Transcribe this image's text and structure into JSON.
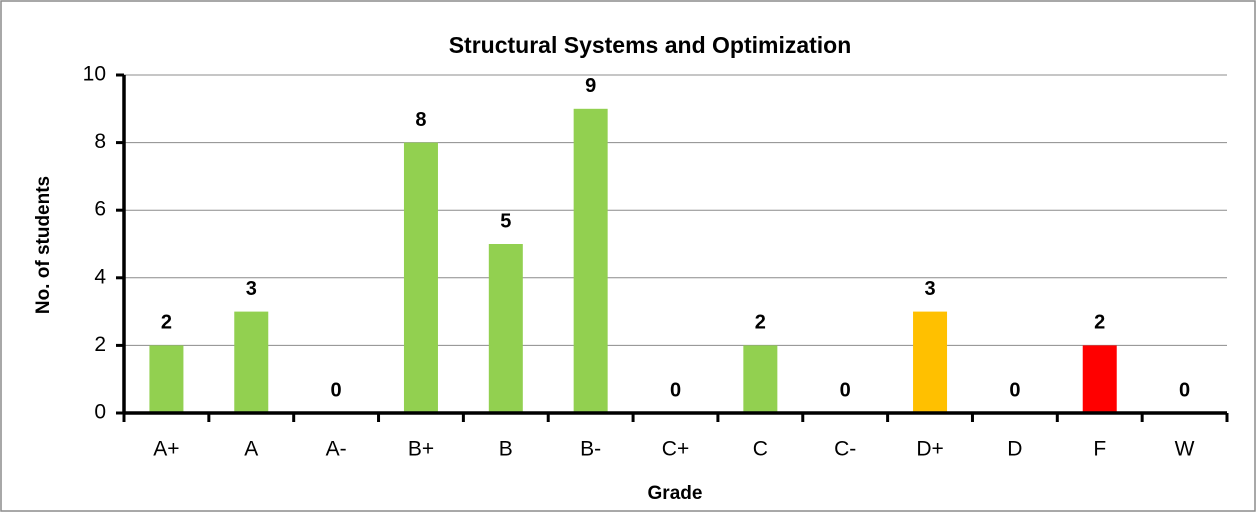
{
  "chart_data": {
    "type": "bar",
    "title": "Structural Systems and Optimization",
    "x_label": "Grade",
    "y_label": "No. of students",
    "categories": [
      "A+",
      "A",
      "A-",
      "B+",
      "B",
      "B-",
      "C+",
      "C",
      "C-",
      "D+",
      "D",
      "F",
      "W"
    ],
    "values": [
      2,
      3,
      0,
      8,
      5,
      9,
      0,
      2,
      0,
      3,
      0,
      2,
      0
    ],
    "colors": [
      "#92d050",
      "#92d050",
      "#92d050",
      "#92d050",
      "#92d050",
      "#92d050",
      "#92d050",
      "#92d050",
      "#92d050",
      "#ffc000",
      "#ffc000",
      "#ff0000",
      "#ff0000"
    ],
    "ylim": [
      0,
      10
    ],
    "yticks": [
      0,
      2,
      4,
      6,
      8,
      10
    ],
    "grid": true
  }
}
